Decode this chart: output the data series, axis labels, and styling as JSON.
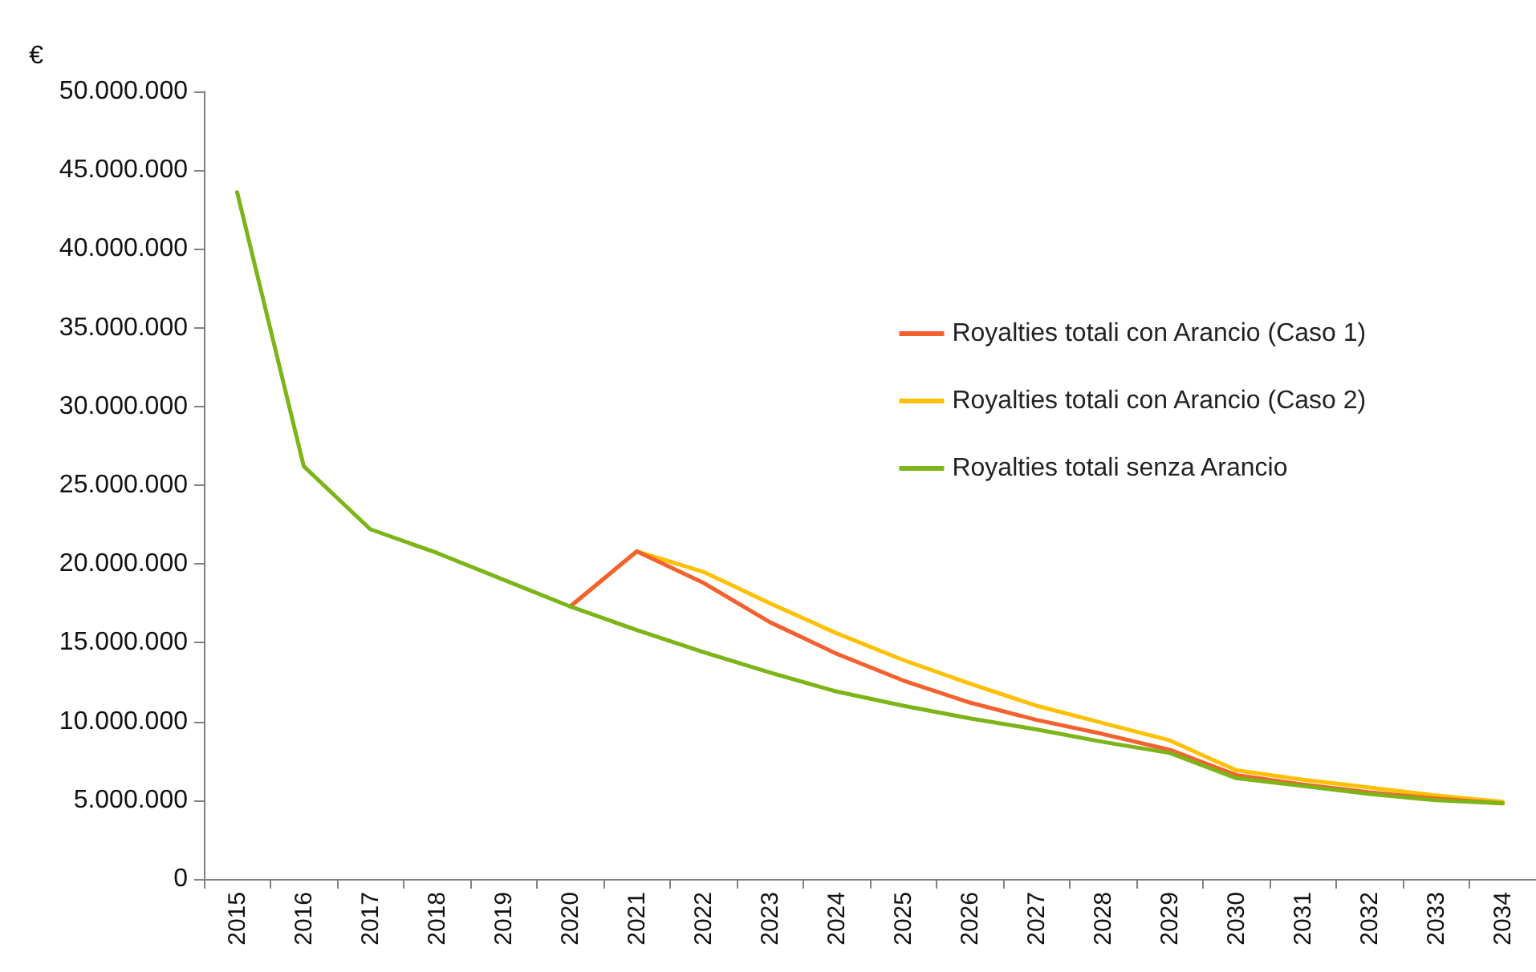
{
  "chart_data": {
    "type": "line",
    "ylabel": "€",
    "categories": [
      "2015",
      "2016",
      "2017",
      "2018",
      "2019",
      "2020",
      "2021",
      "2022",
      "2023",
      "2024",
      "2025",
      "2026",
      "2027",
      "2028",
      "2029",
      "2030",
      "2031",
      "2032",
      "2033",
      "2034"
    ],
    "series": [
      {
        "name": "Royalties totali con Arancio (Caso 1)",
        "color": "#f4612f",
        "values": [
          null,
          null,
          null,
          null,
          null,
          17300000,
          20800000,
          18800000,
          16300000,
          14300000,
          12600000,
          11200000,
          10100000,
          9200000,
          8200000,
          6600000,
          6000000,
          5500000,
          5100000,
          4800000
        ]
      },
      {
        "name": "Royalties totali con Arancio (Caso 2)",
        "color": "#ffc000",
        "values": [
          null,
          null,
          null,
          null,
          null,
          17300000,
          20800000,
          19500000,
          17500000,
          15600000,
          13900000,
          12400000,
          11000000,
          9900000,
          8800000,
          6900000,
          6300000,
          5800000,
          5300000,
          4900000
        ]
      },
      {
        "name": "Royalties totali senza Arancio",
        "color": "#7cb518",
        "values": [
          43600000,
          26200000,
          22200000,
          20700000,
          19000000,
          17300000,
          15800000,
          14400000,
          13100000,
          11900000,
          11000000,
          10200000,
          9500000,
          8700000,
          8000000,
          6400000,
          5900000,
          5400000,
          5000000,
          4800000
        ]
      }
    ],
    "ylim": [
      0,
      50000000
    ],
    "yticks": [
      {
        "value": 0,
        "label": "0"
      },
      {
        "value": 5000000,
        "label": "5.000.000"
      },
      {
        "value": 10000000,
        "label": "10.000.000"
      },
      {
        "value": 15000000,
        "label": "15.000.000"
      },
      {
        "value": 20000000,
        "label": "20.000.000"
      },
      {
        "value": 25000000,
        "label": "25.000.000"
      },
      {
        "value": 30000000,
        "label": "30.000.000"
      },
      {
        "value": 35000000,
        "label": "35.000.000"
      },
      {
        "value": 40000000,
        "label": "40.000.000"
      },
      {
        "value": 45000000,
        "label": "45.000.000"
      },
      {
        "value": 50000000,
        "label": "50.000.000"
      }
    ],
    "grid": false,
    "legend": "right",
    "marker": "none",
    "line_style": "solid"
  }
}
